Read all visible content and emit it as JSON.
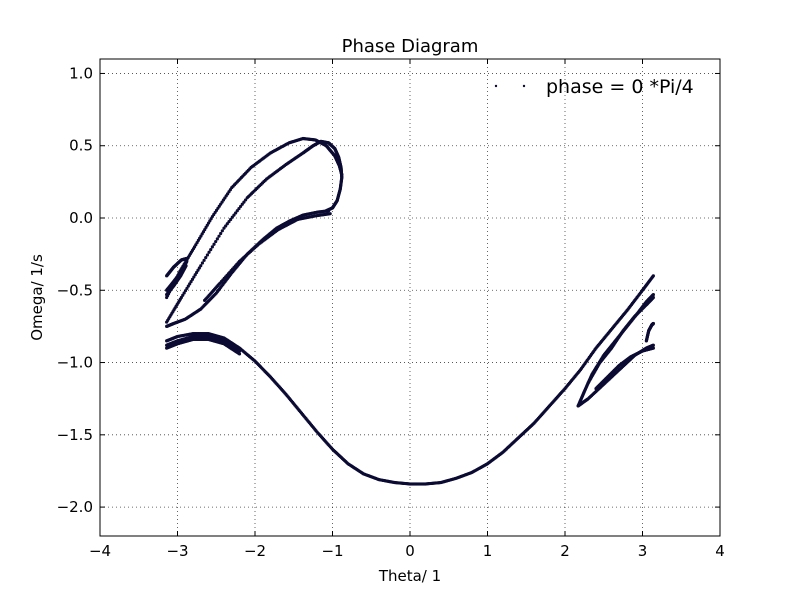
{
  "chart_data": {
    "type": "scatter",
    "title": "Phase Diagram",
    "xlabel": "Theta/ 1",
    "ylabel": "Omega/ 1/s",
    "xlim": [
      -4,
      4
    ],
    "ylim": [
      -2.2,
      1.1
    ],
    "xticks": [
      -4,
      -3,
      -2,
      -1,
      0,
      1,
      2,
      3,
      4
    ],
    "yticks": [
      -2.0,
      -1.5,
      -1.0,
      -0.5,
      0.0,
      0.5,
      1.0
    ],
    "xtick_labels": [
      "−4",
      "−3",
      "−2",
      "−1",
      "0",
      "1",
      "2",
      "3",
      "4"
    ],
    "ytick_labels": [
      "−2.0",
      "−1.5",
      "−1.0",
      "−0.5",
      "0.0",
      "0.5",
      "1.0"
    ],
    "grid": true,
    "legend": {
      "position": "top-right",
      "entries": [
        "phase = 0 *Pi/4"
      ]
    },
    "marker_color": "#0b0b33",
    "series": [
      {
        "name": "phase = 0 *Pi/4",
        "curves": [
          [
            [
              -3.14,
              -0.72
            ],
            [
              -2.95,
              -0.55
            ],
            [
              -2.7,
              -0.33
            ],
            [
              -2.4,
              -0.07
            ],
            [
              -2.1,
              0.14
            ],
            [
              -1.85,
              0.27
            ],
            [
              -1.6,
              0.37
            ],
            [
              -1.38,
              0.45
            ],
            [
              -1.25,
              0.5
            ],
            [
              -1.15,
              0.53
            ],
            [
              -1.05,
              0.52
            ],
            [
              -0.97,
              0.48
            ],
            [
              -0.92,
              0.42
            ],
            [
              -0.89,
              0.35
            ],
            [
              -0.88,
              0.28
            ],
            [
              -0.9,
              0.2
            ],
            [
              -0.94,
              0.12
            ],
            [
              -1.0,
              0.07
            ],
            [
              -1.08,
              0.05
            ]
          ],
          [
            [
              -3.14,
              -0.55
            ],
            [
              -2.97,
              -0.37
            ],
            [
              -2.78,
              -0.2
            ],
            [
              -2.55,
              0.01
            ],
            [
              -2.3,
              0.21
            ],
            [
              -2.05,
              0.35
            ],
            [
              -1.8,
              0.45
            ],
            [
              -1.56,
              0.52
            ],
            [
              -1.38,
              0.55
            ],
            [
              -1.22,
              0.54
            ],
            [
              -1.08,
              0.5
            ],
            [
              -0.97,
              0.43
            ],
            [
              -0.91,
              0.36
            ],
            [
              -0.88,
              0.3
            ]
          ],
          [
            [
              -1.05,
              0.05
            ],
            [
              -1.2,
              0.04
            ],
            [
              -1.38,
              0.02
            ],
            [
              -1.55,
              -0.02
            ],
            [
              -1.72,
              -0.07
            ],
            [
              -1.9,
              -0.15
            ],
            [
              -2.1,
              -0.25
            ],
            [
              -2.3,
              -0.38
            ],
            [
              -2.5,
              -0.52
            ],
            [
              -2.7,
              -0.63
            ],
            [
              -2.9,
              -0.7
            ],
            [
              -3.05,
              -0.73
            ],
            [
              -3.14,
              -0.75
            ]
          ],
          [
            [
              -1.03,
              0.03
            ],
            [
              -1.22,
              0.015
            ],
            [
              -1.45,
              -0.01
            ],
            [
              -1.7,
              -0.08
            ],
            [
              -1.95,
              -0.18
            ],
            [
              -2.2,
              -0.3
            ],
            [
              -2.45,
              -0.45
            ],
            [
              -2.65,
              -0.57
            ]
          ],
          [
            [
              -3.14,
              -0.5
            ],
            [
              -3.05,
              -0.44
            ],
            [
              -2.95,
              -0.37
            ],
            [
              -2.88,
              -0.3
            ]
          ],
          [
            [
              -3.14,
              -0.53
            ],
            [
              -3.05,
              -0.47
            ],
            [
              -2.96,
              -0.4
            ],
            [
              -2.89,
              -0.33
            ]
          ],
          [
            [
              -3.14,
              -0.4
            ],
            [
              -3.05,
              -0.34
            ],
            [
              -2.95,
              -0.29
            ],
            [
              -2.88,
              -0.28
            ]
          ],
          [
            [
              -3.14,
              -0.85
            ],
            [
              -3.0,
              -0.82
            ],
            [
              -2.8,
              -0.8
            ],
            [
              -2.6,
              -0.8
            ],
            [
              -2.4,
              -0.83
            ],
            [
              -2.2,
              -0.9
            ],
            [
              -2.0,
              -0.99
            ],
            [
              -1.8,
              -1.1
            ],
            [
              -1.6,
              -1.22
            ],
            [
              -1.4,
              -1.35
            ],
            [
              -1.2,
              -1.48
            ],
            [
              -1.0,
              -1.6
            ],
            [
              -0.8,
              -1.7
            ],
            [
              -0.6,
              -1.77
            ],
            [
              -0.4,
              -1.81
            ],
            [
              -0.2,
              -1.83
            ],
            [
              0.0,
              -1.84
            ],
            [
              0.2,
              -1.84
            ],
            [
              0.4,
              -1.83
            ],
            [
              0.6,
              -1.8
            ],
            [
              0.8,
              -1.76
            ],
            [
              1.0,
              -1.7
            ],
            [
              1.2,
              -1.62
            ],
            [
              1.4,
              -1.52
            ],
            [
              1.6,
              -1.42
            ],
            [
              1.8,
              -1.3
            ],
            [
              2.0,
              -1.18
            ],
            [
              2.2,
              -1.05
            ],
            [
              2.4,
              -0.9
            ],
            [
              2.6,
              -0.77
            ],
            [
              2.8,
              -0.64
            ],
            [
              3.0,
              -0.5
            ],
            [
              3.14,
              -0.4
            ]
          ],
          [
            [
              -3.14,
              -0.88
            ],
            [
              -3.0,
              -0.85
            ],
            [
              -2.8,
              -0.82
            ],
            [
              -2.6,
              -0.82
            ],
            [
              -2.4,
              -0.85
            ],
            [
              -2.2,
              -0.92
            ]
          ],
          [
            [
              -3.14,
              -0.9
            ],
            [
              -3.0,
              -0.87
            ],
            [
              -2.8,
              -0.84
            ],
            [
              -2.6,
              -0.84
            ],
            [
              -2.4,
              -0.87
            ],
            [
              -2.2,
              -0.94
            ]
          ],
          [
            [
              2.17,
              -1.3
            ],
            [
              2.3,
              -1.25
            ],
            [
              2.5,
              -1.15
            ],
            [
              2.7,
              -1.05
            ],
            [
              2.9,
              -0.95
            ],
            [
              3.05,
              -0.9
            ],
            [
              3.14,
              -0.88
            ]
          ],
          [
            [
              2.17,
              -1.3
            ],
            [
              2.25,
              -1.2
            ],
            [
              2.35,
              -1.08
            ],
            [
              2.5,
              -0.95
            ],
            [
              2.65,
              -0.85
            ],
            [
              2.8,
              -0.75
            ],
            [
              2.95,
              -0.65
            ],
            [
              3.05,
              -0.58
            ],
            [
              3.14,
              -0.53
            ]
          ],
          [
            [
              2.3,
              -1.14
            ],
            [
              2.45,
              -1.0
            ],
            [
              2.6,
              -0.9
            ],
            [
              2.75,
              -0.78
            ],
            [
              2.9,
              -0.68
            ],
            [
              3.05,
              -0.6
            ],
            [
              3.14,
              -0.55
            ]
          ],
          [
            [
              2.4,
              -1.18
            ],
            [
              2.55,
              -1.1
            ],
            [
              2.7,
              -1.02
            ],
            [
              2.85,
              -0.96
            ],
            [
              3.0,
              -0.92
            ],
            [
              3.14,
              -0.9
            ]
          ],
          [
            [
              3.05,
              -0.85
            ],
            [
              3.08,
              -0.78
            ],
            [
              3.12,
              -0.74
            ],
            [
              3.14,
              -0.73
            ]
          ]
        ]
      }
    ]
  }
}
